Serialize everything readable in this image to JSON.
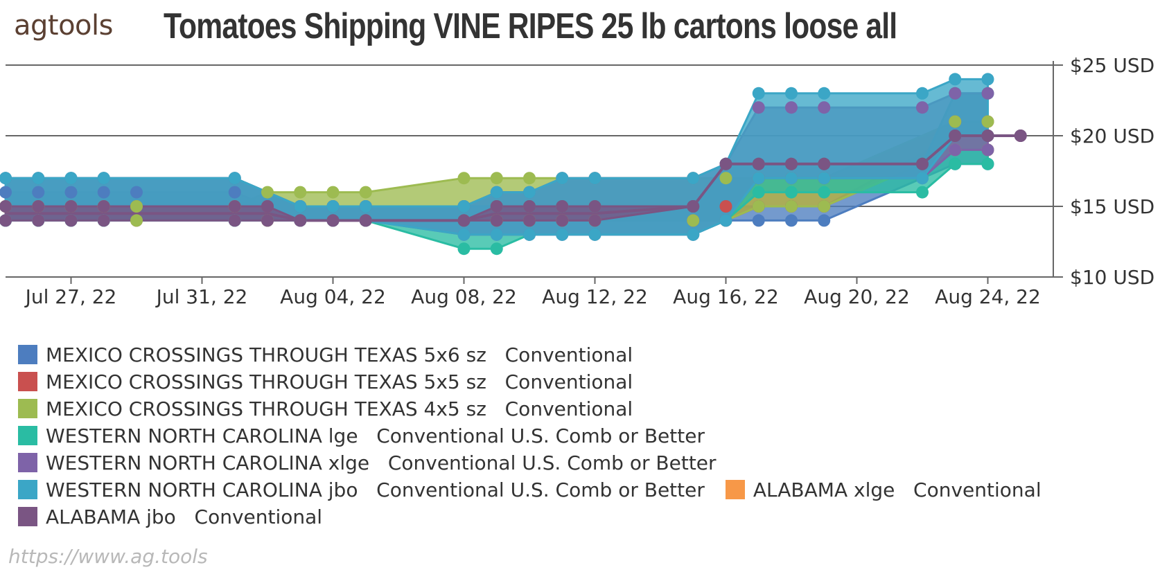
{
  "header": {
    "logo_text": "agtools",
    "title": "Tomatoes Shipping VINE RIPES 25 lb cartons loose all"
  },
  "footer": {
    "source_url": "https://www.ag.tools"
  },
  "chart_data": {
    "type": "area",
    "title": "Tomatoes Shipping VINE RIPES 25 lb cartons loose all",
    "xlabel": "",
    "ylabel": "",
    "x_ticks": [
      "Jul 27, 22",
      "Jul 31, 22",
      "Aug 04, 22",
      "Aug 08, 22",
      "Aug 12, 22",
      "Aug 16, 22",
      "Aug 20, 22",
      "Aug 24, 22"
    ],
    "y_ticks": [
      "$10 USD",
      "$15 USD",
      "$20 USD",
      "$25 USD"
    ],
    "xlim": [
      "2022-07-25",
      "2022-08-26"
    ],
    "ylim": [
      10,
      25
    ],
    "grid": true,
    "legend_position": "bottom",
    "series": [
      {
        "name": "MEXICO CROSSINGS THROUGH TEXAS 5x6 sz   Conventional",
        "color": "#4d7dbf",
        "points": [
          [
            "2022-07-25",
            14,
            16
          ],
          [
            "2022-07-26",
            14,
            16
          ],
          [
            "2022-07-27",
            14,
            16
          ],
          [
            "2022-07-28",
            14,
            16
          ],
          [
            "2022-07-29",
            14,
            16
          ],
          [
            "2022-08-01",
            14,
            16
          ],
          [
            "2022-08-02",
            14,
            15
          ],
          [
            "2022-08-03",
            14,
            15
          ],
          [
            "2022-08-04",
            14,
            15
          ],
          [
            "2022-08-05",
            14,
            15
          ],
          [
            "2022-08-08",
            14,
            15
          ],
          [
            "2022-08-09",
            14,
            15
          ],
          [
            "2022-08-10",
            14,
            15
          ],
          [
            "2022-08-11",
            14,
            15
          ],
          [
            "2022-08-12",
            14,
            15
          ],
          [
            "2022-08-15",
            14,
            15
          ],
          [
            "2022-08-16",
            14,
            15
          ],
          [
            "2022-08-17",
            14,
            15
          ],
          [
            "2022-08-18",
            14,
            15
          ],
          [
            "2022-08-19",
            14,
            15
          ],
          [
            "2022-08-23",
            18,
            20
          ],
          [
            "2022-08-24",
            18,
            20
          ]
        ]
      },
      {
        "name": "MEXICO CROSSINGS THROUGH TEXAS 5x5 sz   Conventional",
        "color": "#c9504f",
        "points": [
          [
            "2022-07-25",
            14,
            15
          ],
          [
            "2022-07-26",
            14,
            15
          ],
          [
            "2022-07-27",
            14,
            15
          ],
          [
            "2022-07-28",
            14,
            15
          ],
          [
            "2022-07-29",
            14,
            15
          ],
          [
            "2022-08-01",
            14,
            15
          ],
          [
            "2022-08-02",
            14,
            15
          ],
          [
            "2022-08-03",
            14,
            15
          ],
          [
            "2022-08-04",
            14,
            15
          ],
          [
            "2022-08-05",
            14,
            15
          ],
          [
            "2022-08-08",
            14,
            15
          ],
          [
            "2022-08-09",
            14,
            15
          ],
          [
            "2022-08-10",
            14,
            15
          ],
          [
            "2022-08-11",
            14,
            15
          ],
          [
            "2022-08-12",
            14,
            15
          ],
          [
            "2022-08-15",
            14,
            15
          ],
          [
            "2022-08-16",
            14,
            15
          ],
          [
            "2022-08-17",
            15,
            17
          ],
          [
            "2022-08-18",
            15,
            17
          ],
          [
            "2022-08-19",
            15,
            17
          ],
          [
            "2022-08-23",
            19,
            21
          ],
          [
            "2022-08-24",
            19,
            21
          ]
        ]
      },
      {
        "name": "MEXICO CROSSINGS THROUGH TEXAS 4x5 sz   Conventional",
        "color": "#9dbb51",
        "points": [
          [
            "2022-07-25",
            14,
            15
          ],
          [
            "2022-07-26",
            14,
            15
          ],
          [
            "2022-07-27",
            14,
            15
          ],
          [
            "2022-07-28",
            14,
            15
          ],
          [
            "2022-07-29",
            14,
            15
          ],
          [
            "2022-08-01",
            14,
            15
          ],
          [
            "2022-08-02",
            14,
            16
          ],
          [
            "2022-08-03",
            14,
            16
          ],
          [
            "2022-08-04",
            14,
            16
          ],
          [
            "2022-08-05",
            14,
            16
          ],
          [
            "2022-08-08",
            14,
            17
          ],
          [
            "2022-08-09",
            14,
            17
          ],
          [
            "2022-08-10",
            14,
            17
          ],
          [
            "2022-08-11",
            14,
            17
          ],
          [
            "2022-08-12",
            14,
            17
          ],
          [
            "2022-08-15",
            14,
            17
          ],
          [
            "2022-08-16",
            14,
            17
          ],
          [
            "2022-08-17",
            15,
            17
          ],
          [
            "2022-08-18",
            15,
            17
          ],
          [
            "2022-08-19",
            15,
            17
          ],
          [
            "2022-08-23",
            19,
            21
          ],
          [
            "2022-08-24",
            19,
            21
          ]
        ]
      },
      {
        "name": "WESTERN NORTH CAROLINA lge   Conventional U.S. Comb or Better",
        "color": "#2abca3",
        "points": [
          [
            "2022-07-25",
            14,
            17
          ],
          [
            "2022-07-26",
            14,
            17
          ],
          [
            "2022-07-27",
            14,
            17
          ],
          [
            "2022-07-28",
            14,
            17
          ],
          [
            "2022-08-01",
            14,
            17
          ],
          [
            "2022-08-03",
            14,
            15
          ],
          [
            "2022-08-04",
            14,
            15
          ],
          [
            "2022-08-05",
            14,
            15
          ],
          [
            "2022-08-08",
            12,
            15
          ],
          [
            "2022-08-09",
            12,
            15
          ],
          [
            "2022-08-10",
            13,
            15
          ],
          [
            "2022-08-11",
            13,
            15
          ],
          [
            "2022-08-12",
            13,
            15
          ],
          [
            "2022-08-15",
            13,
            15
          ],
          [
            "2022-08-16",
            14,
            18
          ],
          [
            "2022-08-17",
            16,
            18
          ],
          [
            "2022-08-18",
            16,
            18
          ],
          [
            "2022-08-19",
            16,
            18
          ],
          [
            "2022-08-22",
            16,
            18
          ],
          [
            "2022-08-23",
            18,
            23
          ],
          [
            "2022-08-24",
            18,
            23
          ]
        ]
      },
      {
        "name": "WESTERN NORTH CAROLINA xlge   Conventional U.S. Comb or Better",
        "color": "#7e63a8",
        "points": [
          [
            "2022-07-25",
            14,
            17
          ],
          [
            "2022-07-26",
            14,
            17
          ],
          [
            "2022-07-27",
            14,
            17
          ],
          [
            "2022-07-28",
            14,
            17
          ],
          [
            "2022-08-01",
            14,
            17
          ],
          [
            "2022-08-03",
            14,
            15
          ],
          [
            "2022-08-04",
            14,
            15
          ],
          [
            "2022-08-05",
            14,
            15
          ],
          [
            "2022-08-08",
            13,
            15
          ],
          [
            "2022-08-09",
            13,
            16
          ],
          [
            "2022-08-10",
            13,
            16
          ],
          [
            "2022-08-11",
            13,
            17
          ],
          [
            "2022-08-12",
            13,
            17
          ],
          [
            "2022-08-15",
            13,
            17
          ],
          [
            "2022-08-16",
            14,
            18
          ],
          [
            "2022-08-17",
            17,
            22
          ],
          [
            "2022-08-18",
            17,
            22
          ],
          [
            "2022-08-19",
            17,
            22
          ],
          [
            "2022-08-22",
            17,
            22
          ],
          [
            "2022-08-23",
            19,
            23
          ],
          [
            "2022-08-24",
            19,
            23
          ]
        ]
      },
      {
        "name": "WESTERN NORTH CAROLINA jbo   Conventional U.S. Comb or Better",
        "color": "#3ba6c6",
        "points": [
          [
            "2022-07-25",
            14,
            17
          ],
          [
            "2022-07-26",
            14,
            17
          ],
          [
            "2022-07-27",
            14,
            17
          ],
          [
            "2022-07-28",
            14,
            17
          ],
          [
            "2022-08-01",
            14,
            17
          ],
          [
            "2022-08-03",
            14,
            15
          ],
          [
            "2022-08-04",
            14,
            15
          ],
          [
            "2022-08-05",
            14,
            15
          ],
          [
            "2022-08-08",
            13,
            15
          ],
          [
            "2022-08-09",
            13,
            16
          ],
          [
            "2022-08-10",
            13,
            16
          ],
          [
            "2022-08-11",
            13,
            17
          ],
          [
            "2022-08-12",
            13,
            17
          ],
          [
            "2022-08-15",
            13,
            17
          ],
          [
            "2022-08-16",
            14,
            18
          ],
          [
            "2022-08-17",
            17,
            23
          ],
          [
            "2022-08-18",
            17,
            23
          ],
          [
            "2022-08-19",
            17,
            23
          ],
          [
            "2022-08-22",
            17,
            23
          ],
          [
            "2022-08-23",
            20,
            24
          ],
          [
            "2022-08-24",
            20,
            24
          ]
        ]
      },
      {
        "name": "ALABAMA xlge   Conventional",
        "color": "#f79848",
        "points": []
      },
      {
        "name": "ALABAMA jbo   Conventional",
        "color": "#7a5583",
        "points": [
          [
            "2022-07-25",
            14,
            15
          ],
          [
            "2022-07-26",
            14,
            15
          ],
          [
            "2022-07-27",
            14,
            15
          ],
          [
            "2022-07-28",
            14,
            15
          ],
          [
            "2022-08-01",
            14,
            15
          ],
          [
            "2022-08-02",
            14,
            15
          ],
          [
            "2022-08-03",
            14,
            14
          ],
          [
            "2022-08-04",
            14,
            14
          ],
          [
            "2022-08-05",
            14,
            14
          ],
          [
            "2022-08-08",
            14,
            14
          ],
          [
            "2022-08-09",
            14,
            15
          ],
          [
            "2022-08-10",
            14,
            15
          ],
          [
            "2022-08-11",
            14,
            15
          ],
          [
            "2022-08-12",
            14,
            15
          ],
          [
            "2022-08-15",
            15,
            15
          ],
          [
            "2022-08-16",
            18,
            18
          ],
          [
            "2022-08-17",
            18,
            18
          ],
          [
            "2022-08-18",
            18,
            18
          ],
          [
            "2022-08-19",
            18,
            18
          ],
          [
            "2022-08-22",
            18,
            18
          ],
          [
            "2022-08-23",
            20,
            20
          ],
          [
            "2022-08-24",
            20,
            20
          ],
          [
            "2022-08-25",
            20,
            20
          ]
        ]
      }
    ]
  }
}
